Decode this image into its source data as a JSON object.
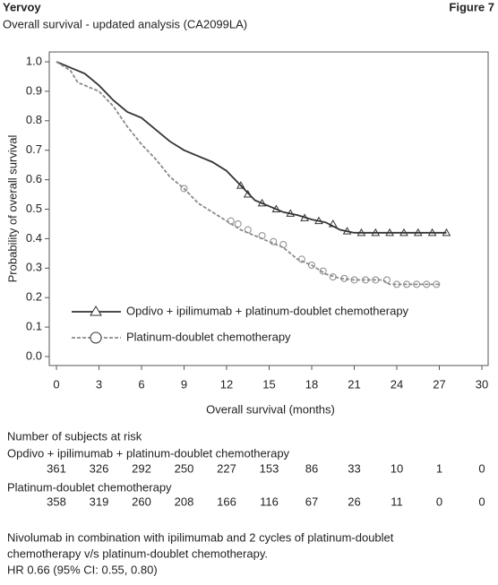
{
  "header": {
    "title": "Yervoy",
    "figure": "Figure 7",
    "subtitle": "Overall survival - updated analysis (CA2099LA)"
  },
  "chart_data": {
    "type": "line",
    "x_label": "Overall survival (months)",
    "y_label": "Probability of overall survival",
    "xlim": [
      0,
      30
    ],
    "xticks": [
      0,
      3,
      6,
      9,
      12,
      15,
      18,
      21,
      24,
      27,
      30
    ],
    "ylim": [
      0,
      1
    ],
    "yticks": [
      {
        "value": 0,
        "label": "0.0"
      },
      0.1,
      0.2,
      0.3,
      0.4,
      0.5,
      0.6,
      0.7,
      0.8,
      0.9,
      {
        "value": 1,
        "label": "1.0"
      }
    ],
    "legend": "lower-left",
    "series": [
      {
        "name": "Opdivo + ipilimumab + platinum-doublet chemotherapy",
        "color": "#333333",
        "dash": false,
        "marker": "triangle",
        "x": [
          0,
          1,
          2,
          3,
          4,
          5,
          6,
          7,
          8,
          9,
          10,
          11,
          12,
          13,
          14,
          15,
          16,
          17,
          18,
          19,
          20,
          21,
          27.5
        ],
        "values": [
          1.0,
          0.98,
          0.96,
          0.92,
          0.87,
          0.83,
          0.81,
          0.77,
          0.73,
          0.7,
          0.68,
          0.66,
          0.63,
          0.58,
          0.53,
          0.51,
          0.49,
          0.48,
          0.465,
          0.455,
          0.43,
          0.42,
          0.42
        ],
        "censor_x": [
          13,
          13.5,
          14.5,
          15.5,
          16.5,
          17.5,
          18.5,
          19.5,
          20.5,
          21.5,
          22.5,
          23.5,
          24.5,
          25.5,
          26.5,
          27.5
        ],
        "censor_y": [
          0.58,
          0.55,
          0.52,
          0.5,
          0.485,
          0.47,
          0.46,
          0.45,
          0.425,
          0.42,
          0.42,
          0.42,
          0.42,
          0.42,
          0.42,
          0.42
        ]
      },
      {
        "name": "Platinum-doublet chemotherapy",
        "color": "#8a8a8a",
        "dash": true,
        "marker": "circle",
        "x": [
          0,
          1,
          1.5,
          2.5,
          3,
          4,
          5,
          6,
          7,
          8,
          9,
          10,
          11,
          12,
          13,
          14,
          15,
          16,
          17,
          18,
          19,
          20,
          21,
          23,
          23.5,
          27
        ],
        "values": [
          1.0,
          0.97,
          0.93,
          0.91,
          0.9,
          0.85,
          0.78,
          0.72,
          0.67,
          0.61,
          0.57,
          0.52,
          0.49,
          0.46,
          0.43,
          0.41,
          0.39,
          0.37,
          0.33,
          0.31,
          0.28,
          0.265,
          0.26,
          0.26,
          0.245,
          0.245
        ],
        "censor_x": [
          9,
          12.3,
          12.8,
          13.5,
          14.5,
          15.3,
          16,
          17.3,
          18,
          18.8,
          19.5,
          20.3,
          21,
          21.8,
          22.5,
          23.3,
          24,
          24.7,
          25.4,
          26.1,
          26.8
        ],
        "censor_y": [
          0.57,
          0.46,
          0.45,
          0.43,
          0.41,
          0.39,
          0.38,
          0.33,
          0.31,
          0.29,
          0.27,
          0.265,
          0.26,
          0.26,
          0.26,
          0.26,
          0.245,
          0.245,
          0.245,
          0.245,
          0.245
        ]
      }
    ]
  },
  "risk_table": {
    "title": "Number of subjects at risk",
    "groups": [
      {
        "name": "Opdivo + ipilimumab + platinum-doublet chemotherapy",
        "counts": [
          361,
          326,
          292,
          250,
          227,
          153,
          86,
          33,
          10,
          1,
          0
        ]
      },
      {
        "name": "Platinum-doublet chemotherapy",
        "counts": [
          358,
          319,
          260,
          208,
          166,
          116,
          67,
          26,
          11,
          0,
          0
        ]
      }
    ]
  },
  "footnote": [
    "Nivolumab in combination with ipilimumab and 2 cycles of platinum-doublet",
    "chemotherapy v/s platinum-doublet chemotherapy.",
    "HR 0.66 (95% CI: 0.55, 0.80)"
  ]
}
